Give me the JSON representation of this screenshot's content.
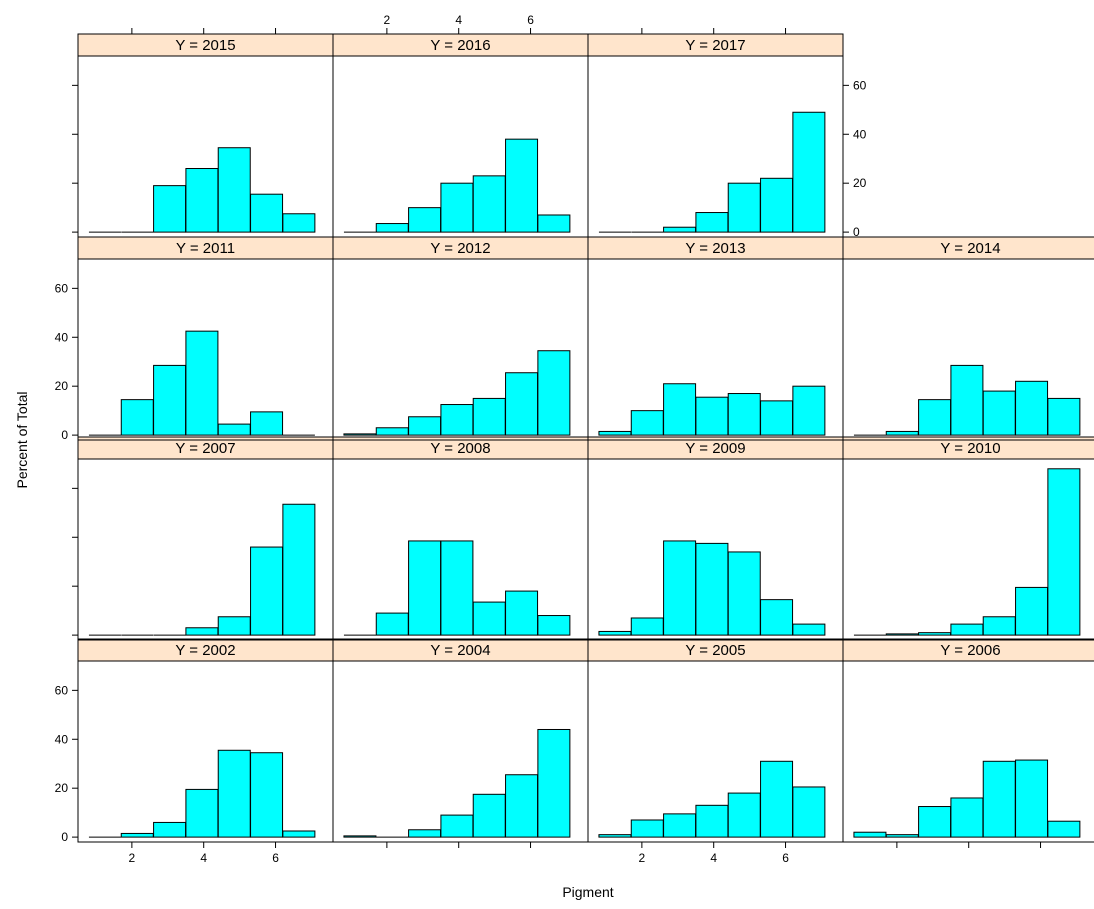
{
  "colors": {
    "bar": "#00FFFF",
    "strip": "#FFE5CC",
    "stroke": "#000000"
  },
  "chart_data": {
    "type": "bar",
    "layout": "lattice histogram, 4 columns x 4 rows",
    "xlabel": "Pigment",
    "ylabel": "Percent of Total",
    "xlim": [
      0.5,
      7.6
    ],
    "ylim": [
      -2,
      72
    ],
    "bin_centers": [
      1.25,
      2.15,
      3.05,
      3.95,
      4.85,
      5.75,
      6.65
    ],
    "x_ticks": [
      2,
      4,
      6
    ],
    "y_ticks": [
      0,
      20,
      40,
      60
    ],
    "panels": [
      {
        "label": "Y = 2002",
        "values": [
          0,
          1.5,
          6,
          19.5,
          35.5,
          34.5,
          2.5
        ]
      },
      {
        "label": "Y = 2004",
        "values": [
          0.5,
          0,
          3,
          9,
          17.5,
          25.5,
          44
        ]
      },
      {
        "label": "Y = 2005",
        "values": [
          1,
          7,
          9.5,
          13,
          18,
          31,
          20.5
        ]
      },
      {
        "label": "Y = 2006",
        "values": [
          2,
          1,
          12.5,
          16,
          31,
          31.5,
          6.5
        ]
      },
      {
        "label": "Y = 2007",
        "values": [
          0,
          0,
          0,
          3,
          7.5,
          36,
          53.5
        ]
      },
      {
        "label": "Y = 2008",
        "values": [
          0,
          9,
          38.5,
          38.5,
          13.5,
          18,
          8
        ]
      },
      {
        "label": "Y = 2009",
        "values": [
          1.5,
          7,
          38.5,
          37.5,
          34,
          14.5,
          4.5
        ]
      },
      {
        "label": "Y = 2010",
        "values": [
          0,
          0.5,
          1,
          4.5,
          7.5,
          19.5,
          68
        ]
      },
      {
        "label": "Y = 2011",
        "values": [
          0,
          14.5,
          28.5,
          42.5,
          4.5,
          9.5,
          0
        ]
      },
      {
        "label": "Y = 2012",
        "values": [
          0.5,
          3,
          7.5,
          12.5,
          15,
          25.5,
          34.5
        ]
      },
      {
        "label": "Y = 2013",
        "values": [
          1.5,
          10,
          21,
          15.5,
          17,
          14,
          20
        ]
      },
      {
        "label": "Y = 2014",
        "values": [
          0,
          1.5,
          14.5,
          28.5,
          18,
          22,
          15
        ]
      },
      {
        "label": "Y = 2015",
        "values": [
          0,
          0,
          19,
          26,
          34.5,
          15.5,
          7.5
        ]
      },
      {
        "label": "Y = 2016",
        "values": [
          0,
          3.5,
          10,
          20,
          23,
          38,
          7
        ]
      },
      {
        "label": "Y = 2017",
        "values": [
          0,
          0,
          2,
          8,
          20,
          22,
          49
        ]
      }
    ]
  }
}
